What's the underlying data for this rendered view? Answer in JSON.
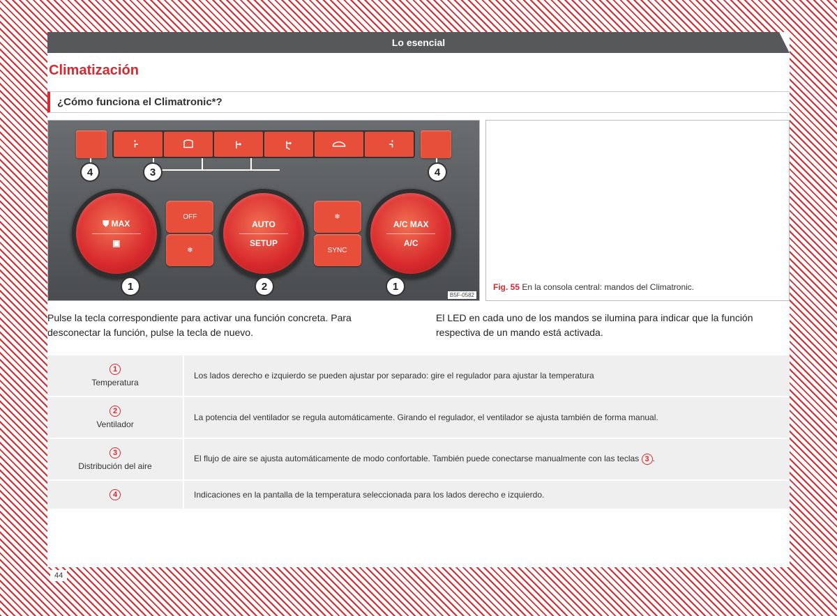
{
  "pageNumber": "44",
  "headerTitle": "Lo esencial",
  "sectionTitle": "Climatización",
  "subTitle": "¿Cómo funciona el Climatronic*?",
  "figure": {
    "number": "Fig. 55",
    "caption": "En la consola central: mandos del Clima­tronic.",
    "panelCode": "B5F-0582"
  },
  "panel": {
    "topRow": [
      "seat-heat-l",
      "defrost",
      "air-foot",
      "air-face",
      "recirc",
      "seat-heat-r"
    ],
    "knobs": {
      "left": {
        "lines": [
          "⛊ MAX",
          "▣"
        ]
      },
      "center": {
        "lines": [
          "AUTO",
          "SETUP"
        ]
      },
      "right": {
        "lines": [
          "A/C MAX",
          "A/C"
        ]
      }
    },
    "midLeft": [
      "OFF",
      "❄"
    ],
    "midRight": [
      "❄",
      "SYNC"
    ],
    "callouts": {
      "c4l": "4",
      "c3": "3",
      "c4r": "4",
      "c1l": "1",
      "c2": "2",
      "c1r": "1"
    }
  },
  "para1": "Pulse la tecla correspondiente para activar una función concreta. Para desconectar la función, pulse la tecla de nuevo.",
  "para2": "El LED en cada uno de los mandos se ilumina para indicar que la función respectiva de un mando está activada.",
  "table": [
    {
      "num": "1",
      "label": "Temperatura",
      "desc": "Los lados derecho e izquierdo se pueden ajustar por separado: gire el regulador para ajustar la temperatura"
    },
    {
      "num": "2",
      "label": "Ventilador",
      "desc": "La potencia del ventilador se regula automáticamente. Girando el regulador, el ventilador se ajusta también de forma manual."
    },
    {
      "num": "3",
      "label": "Distribución del aire",
      "descPre": "El flujo de aire se ajusta automáticamente de modo confortable. También puede conectarse manualmente con las teclas ",
      "descNum": "3",
      "descPost": "."
    },
    {
      "num": "4",
      "label": "",
      "desc": "Indicaciones en la pantalla de la temperatura seleccionada para los lados derecho e izquierdo."
    }
  ]
}
